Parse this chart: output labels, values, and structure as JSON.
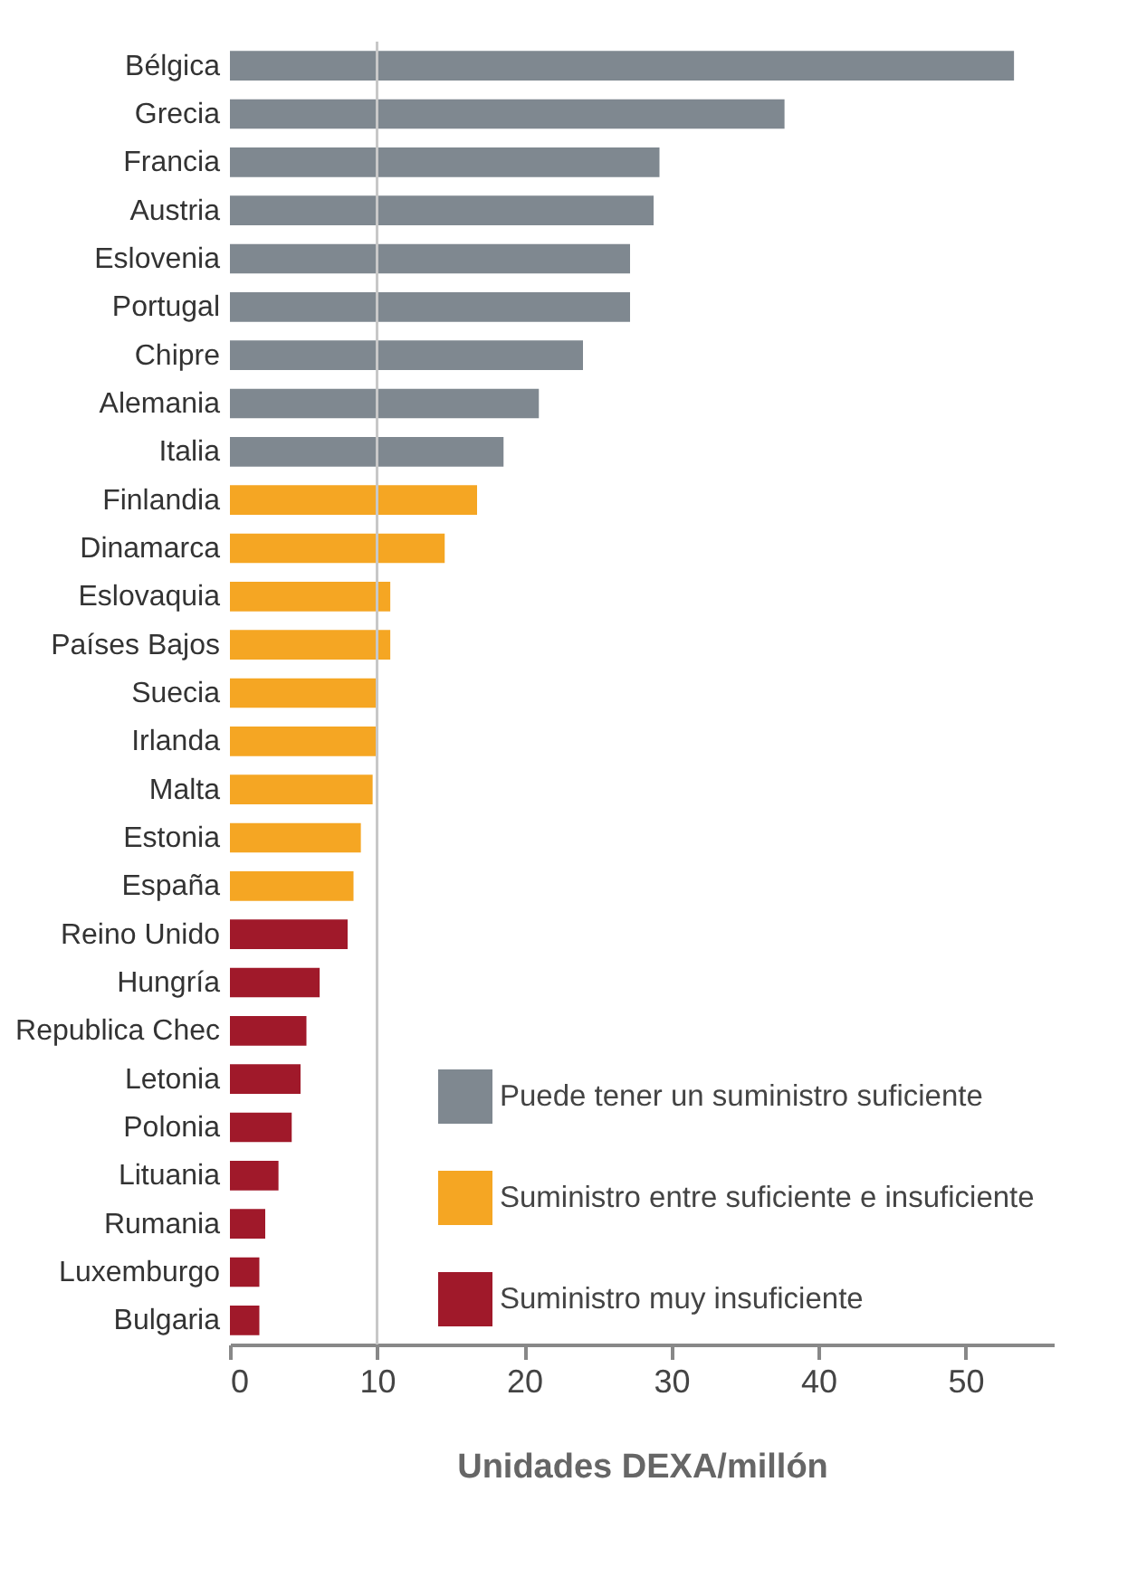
{
  "chart_data": {
    "type": "bar",
    "orientation": "horizontal",
    "xlabel": "Unidades DEXA/millón",
    "categories": [
      "Bélgica",
      "Grecia",
      "Francia",
      "Austria",
      "Eslovenia",
      "Portugal",
      "Chipre",
      "Alemania",
      "Italia",
      "Finlandia",
      "Dinamarca",
      "Eslovaquia",
      "Países Bajos",
      "Suecia",
      "Irlanda",
      "Malta",
      "Estonia",
      "España",
      "Reino Unido",
      "Hungría",
      "Republica Chec",
      "Letonia",
      "Polonia",
      "Lituania",
      "Rumania",
      "Luxemburgo",
      "Bulgaria"
    ],
    "series": [
      {
        "name": "Puede tener un suministro suficiente",
        "color": "#7f8890",
        "values": [
          53.3,
          37.7,
          29.2,
          28.8,
          27.2,
          27.2,
          24.0,
          21.0,
          18.6,
          null,
          null,
          null,
          null,
          null,
          null,
          null,
          null,
          null,
          null,
          null,
          null,
          null,
          null,
          null,
          null,
          null,
          null
        ]
      },
      {
        "name": "Suministro entre suficiente e insuficiente",
        "color": "#f5a623",
        "values": [
          null,
          null,
          null,
          null,
          null,
          null,
          null,
          null,
          null,
          16.8,
          14.6,
          10.9,
          10.9,
          10.0,
          10.0,
          9.7,
          8.9,
          8.4,
          null,
          null,
          null,
          null,
          null,
          null,
          null,
          null,
          null
        ]
      },
      {
        "name": "Suministro muy insuficiente",
        "color": "#a0192a",
        "values": [
          null,
          null,
          null,
          null,
          null,
          null,
          null,
          null,
          null,
          null,
          null,
          null,
          null,
          null,
          null,
          null,
          null,
          null,
          8.0,
          6.1,
          5.2,
          4.8,
          4.2,
          3.3,
          2.4,
          2.0,
          2.0
        ]
      }
    ],
    "xlim": [
      0,
      56
    ],
    "xticks": [
      0,
      10,
      20,
      30,
      40,
      50
    ],
    "ref_lines": [
      {
        "axis": "x",
        "value": 10,
        "color": "#c8c8c8"
      }
    ],
    "legend": "bottom right",
    "grid": false
  }
}
